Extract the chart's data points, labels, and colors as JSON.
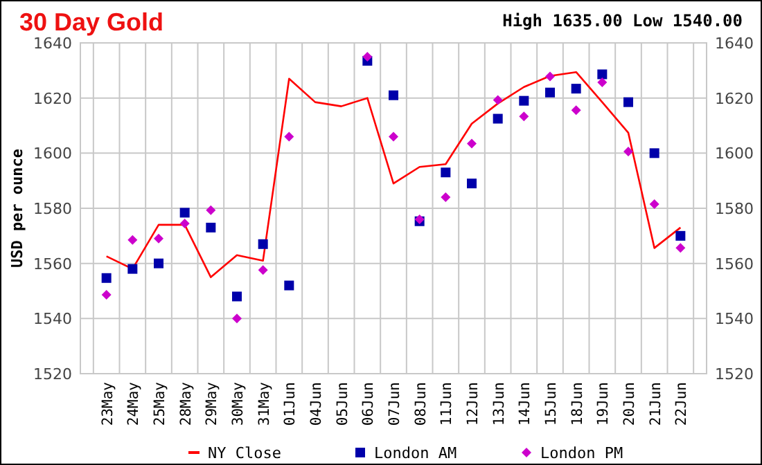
{
  "chart_data": {
    "type": "line",
    "title": "30 Day Gold",
    "subtitle": "High 1635.00 Low 1540.00",
    "ylabel": "USD per ounce",
    "categories": [
      "23May",
      "24May",
      "25May",
      "28May",
      "29May",
      "30May",
      "31May",
      "01Jun",
      "04Jun",
      "05Jun",
      "06Jun",
      "07Jun",
      "08Jun",
      "11Jun",
      "12Jun",
      "13Jun",
      "14Jun",
      "15Jun",
      "18Jun",
      "19Jun",
      "20Jun",
      "21Jun",
      "22Jun"
    ],
    "series": [
      {
        "name": "NY Close",
        "type": "line",
        "color": "#ff0000",
        "marker": "none",
        "values": [
          1562.6,
          1558,
          1574,
          1574,
          1555,
          1563,
          1561,
          1627,
          1618.5,
          1617,
          1620,
          1589,
          1595,
          1596,
          1610.7,
          1618,
          1624,
          1628,
          1629.4,
          1618.5,
          1607.4,
          1565.6,
          1573
        ]
      },
      {
        "name": "London AM",
        "type": "scatter",
        "color": "#0000aa",
        "marker": "square",
        "values": [
          1554.7,
          1558,
          1560,
          1578.4,
          1573,
          1548,
          1567,
          1552,
          null,
          null,
          1633.5,
          1621,
          1575.3,
          1593,
          1589,
          1612.5,
          1619,
          1622,
          1623.4,
          1628.6,
          1618.5,
          1600,
          1570
        ]
      },
      {
        "name": "London PM",
        "type": "scatter",
        "color": "#cc00cc",
        "marker": "diamond",
        "values": [
          1548.6,
          1568.5,
          1569,
          1574.5,
          1579.3,
          1540,
          1557.6,
          1606,
          null,
          null,
          1635,
          1606,
          1576,
          1584,
          1603.5,
          1619.3,
          1613.3,
          1627.8,
          1615.6,
          1625.7,
          1600.6,
          1581.5,
          1565.6
        ]
      }
    ],
    "ylim": [
      1520,
      1640
    ],
    "yticks": [
      1520,
      1540,
      1560,
      1580,
      1600,
      1620,
      1640
    ],
    "y2lim": [
      1520,
      1640
    ],
    "y2ticks": [
      1520,
      1540,
      1560,
      1580,
      1600,
      1620,
      1640
    ],
    "grid": true,
    "legend": "bottom"
  }
}
